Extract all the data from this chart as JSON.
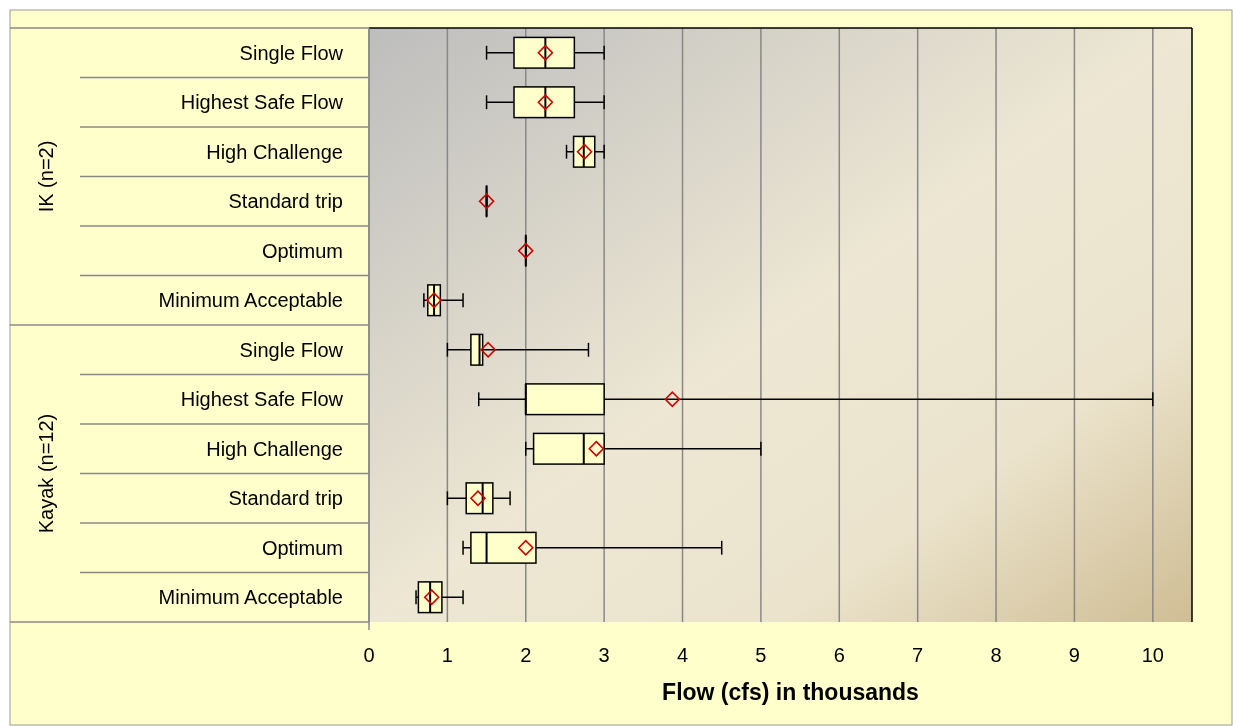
{
  "chart_data": {
    "type": "box",
    "orientation": "horizontal",
    "xlabel": "Flow (cfs) in thousands",
    "categories": [
      "Single Flow",
      "Highest Safe Flow",
      "High Challenge",
      "Standard trip",
      "Optimum",
      "Minimum Acceptable",
      "Single Flow",
      "Highest Safe Flow",
      "High Challenge",
      "Standard trip",
      "Optimum",
      "Minimum Acceptable"
    ],
    "annotations": [
      "IK (n=2)",
      "Kayak (n=12)"
    ],
    "color": "#ffffcc",
    "marker": "diamond",
    "grid": "x",
    "xlim": [
      0,
      10.5
    ],
    "xticks": [
      0,
      1,
      2,
      3,
      4,
      5,
      6,
      7,
      8,
      9,
      10
    ],
    "boxes": [
      {
        "low": 1.5,
        "q1": 1.85,
        "median": 2.25,
        "q3": 2.62,
        "high": 3.0,
        "mean": 2.25
      },
      {
        "low": 1.5,
        "q1": 1.85,
        "median": 2.25,
        "q3": 2.62,
        "high": 3.0,
        "mean": 2.25
      },
      {
        "low": 2.52,
        "q1": 2.61,
        "median": 2.74,
        "q3": 2.88,
        "high": 3.0,
        "mean": 2.75
      },
      {
        "low": 1.5,
        "q1": 1.5,
        "median": 1.5,
        "q3": 1.5,
        "high": 1.5,
        "mean": 1.5
      },
      {
        "low": 2.0,
        "q1": 2.0,
        "median": 2.0,
        "q3": 2.0,
        "high": 2.0,
        "mean": 2.0
      },
      {
        "low": 0.7,
        "q1": 0.75,
        "median": 0.83,
        "q3": 0.91,
        "high": 1.2,
        "mean": 0.83
      },
      {
        "low": 1.0,
        "q1": 1.3,
        "median": 1.41,
        "q3": 1.45,
        "high": 2.8,
        "mean": 1.52
      },
      {
        "low": 1.4,
        "q1": 2.0,
        "median": 2.0,
        "q3": 3.0,
        "high": 10.0,
        "mean": 3.87
      },
      {
        "low": 2.0,
        "q1": 2.1,
        "median": 2.74,
        "q3": 3.0,
        "high": 5.0,
        "mean": 2.9
      },
      {
        "low": 1.0,
        "q1": 1.24,
        "median": 1.45,
        "q3": 1.58,
        "high": 1.8,
        "mean": 1.39
      },
      {
        "low": 1.2,
        "q1": 1.3,
        "median": 1.5,
        "q3": 2.13,
        "high": 4.5,
        "mean": 2.0
      },
      {
        "low": 0.6,
        "q1": 0.63,
        "median": 0.78,
        "q3": 0.93,
        "high": 1.2,
        "mean": 0.8
      }
    ]
  }
}
